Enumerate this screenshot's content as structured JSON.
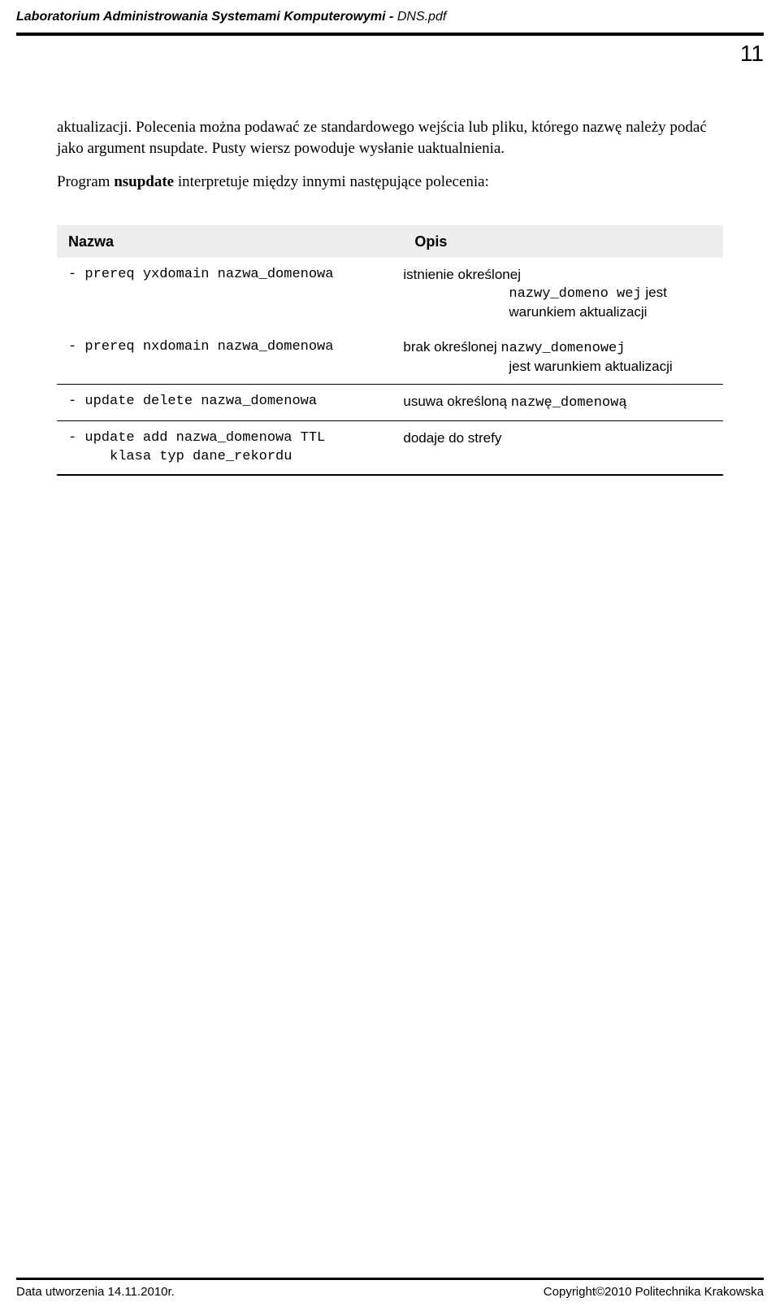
{
  "header": {
    "title_bold": "Laboratorium Administrowania Systemami Komputerowymi  - ",
    "title_italic": "DNS.pdf"
  },
  "page_number": "11",
  "body": {
    "p1": "aktualizacji. Polecenia można podawać ze standardowego wejścia lub pliku, którego nazwę należy podać jako argument nsupdate. Pusty wiersz powoduje wysłanie uaktualnienia.",
    "p2_pre": "Program ",
    "p2_bold": "nsupdate",
    "p2_post": " interpretuje między innymi następujące polecenia:"
  },
  "table": {
    "head_name": "Nazwa",
    "head_desc": "Opis",
    "rows": [
      {
        "name": "- prereq yxdomain nazwa_domenowa",
        "desc_plain1": "istnienie określonej",
        "desc_mono": "nazwy_domeno wej",
        "desc_plain2": " jest warunkiem aktualizacji"
      },
      {
        "name": "- prereq nxdomain nazwa_domenowa",
        "desc_plain1": "brak określonej ",
        "desc_mono": "nazwy_domenowej",
        "desc_plain2": " jest warunkiem aktualizacji"
      },
      {
        "name": "- update delete nazwa_domenowa",
        "desc_plain1": "usuwa określoną ",
        "desc_mono": "nazwę_domenową",
        "desc_plain2": ""
      },
      {
        "name": "- update add nazwa_domenowa TTL\n     klasa typ dane_rekordu",
        "desc_plain1": "dodaje do strefy",
        "desc_mono": "",
        "desc_plain2": ""
      }
    ]
  },
  "footer": {
    "left": "Data utworzenia 14.11.2010r.",
    "right": "Copyright©2010 Politechnika Krakowska"
  }
}
